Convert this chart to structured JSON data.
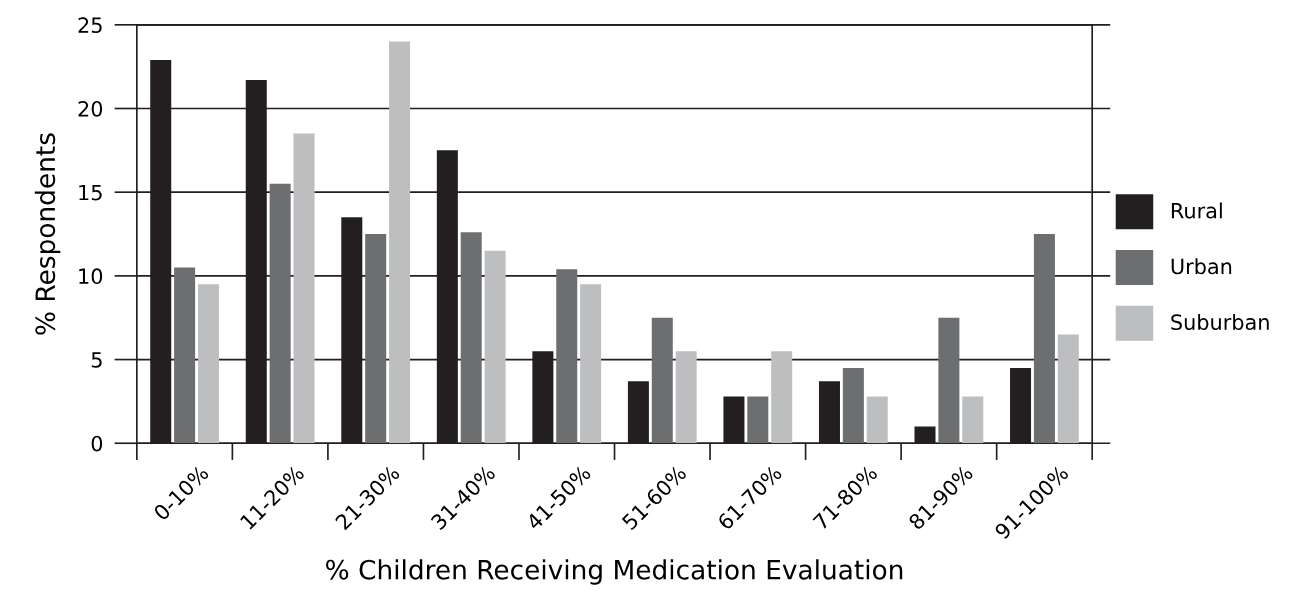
{
  "chart_data": {
    "type": "bar",
    "xlabel": "% Children Receiving Medication Evaluation",
    "ylabel": "% Respondents",
    "categories": [
      "0-10%",
      "11-20%",
      "21-30%",
      "31-40%",
      "41-50%",
      "51-60%",
      "61-70%",
      "71-80%",
      "81-90%",
      "91-100%"
    ],
    "series": [
      {
        "name": "Rural",
        "color": "#231f20",
        "values": [
          22.9,
          21.7,
          13.5,
          17.5,
          5.5,
          3.7,
          2.8,
          3.7,
          1.0,
          4.5
        ]
      },
      {
        "name": "Urban",
        "color": "#6d6e70",
        "values": [
          10.5,
          15.5,
          12.5,
          12.6,
          10.4,
          7.5,
          2.8,
          4.5,
          7.5,
          12.5
        ]
      },
      {
        "name": "Suburban",
        "color": "#bcbec0",
        "values": [
          9.5,
          18.5,
          24.0,
          11.5,
          9.5,
          5.5,
          5.5,
          2.8,
          2.8,
          6.5
        ]
      }
    ],
    "ylim": [
      0,
      25
    ],
    "yticks": [
      0,
      5,
      10,
      15,
      20,
      25
    ],
    "grid": "y",
    "legend": "right"
  }
}
